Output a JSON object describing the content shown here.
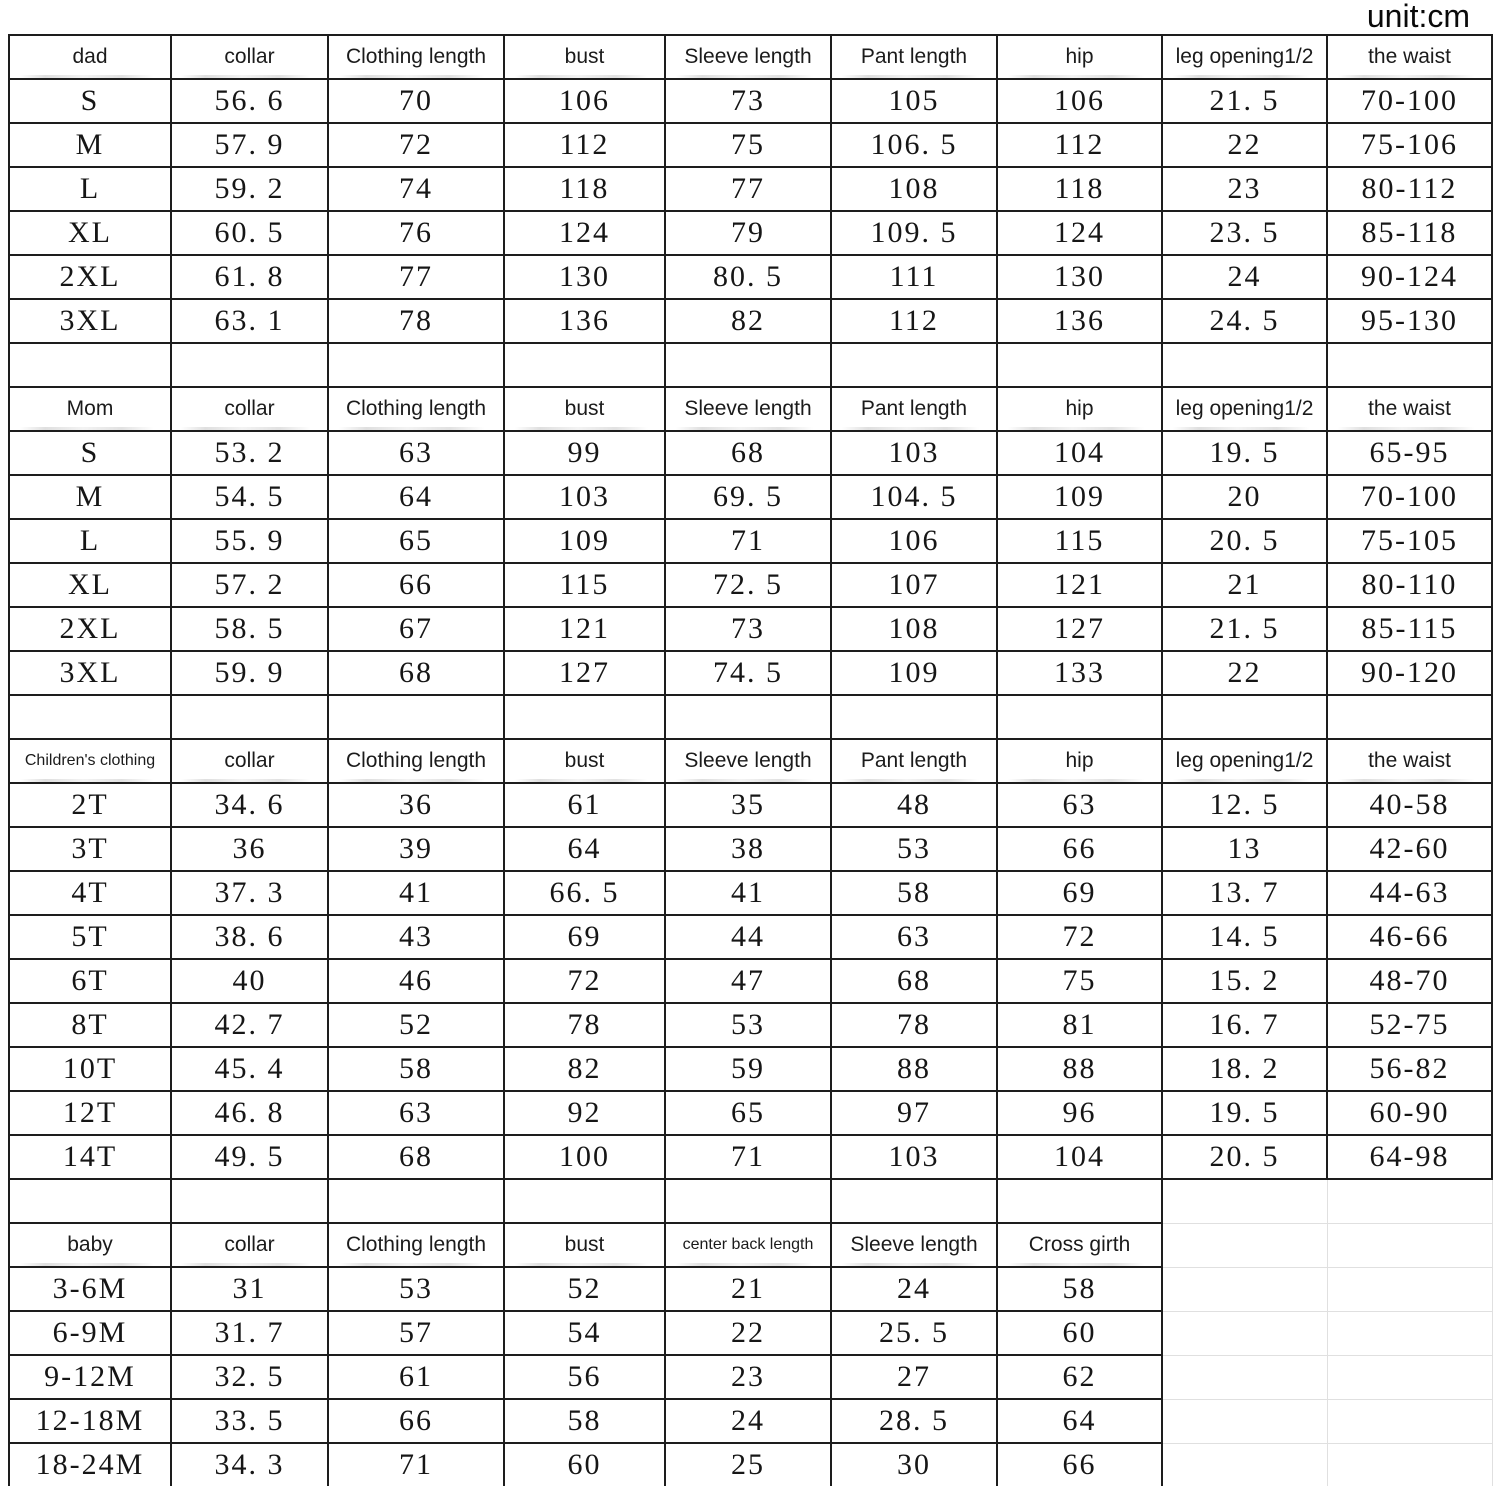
{
  "unit_label": "unit:cm",
  "chart_data": [
    {
      "type": "table",
      "name": "dad",
      "columns": [
        "dad",
        "collar",
        "Clothing length",
        "bust",
        "Sleeve length",
        "Pant length",
        "hip",
        "leg opening1/2",
        "the waist"
      ],
      "rows": [
        [
          "S",
          "56. 6",
          "70",
          "106",
          "73",
          "105",
          "106",
          "21. 5",
          "70-100"
        ],
        [
          "M",
          "57. 9",
          "72",
          "112",
          "75",
          "106. 5",
          "112",
          "22",
          "75-106"
        ],
        [
          "L",
          "59. 2",
          "74",
          "118",
          "77",
          "108",
          "118",
          "23",
          "80-112"
        ],
        [
          "XL",
          "60. 5",
          "76",
          "124",
          "79",
          "109. 5",
          "124",
          "23. 5",
          "85-118"
        ],
        [
          "2XL",
          "61. 8",
          "77",
          "130",
          "80. 5",
          "111",
          "130",
          "24",
          "90-124"
        ],
        [
          "3XL",
          "63. 1",
          "78",
          "136",
          "82",
          "112",
          "136",
          "24. 5",
          "95-130"
        ]
      ]
    },
    {
      "type": "table",
      "name": "Mom",
      "columns": [
        "Mom",
        "collar",
        "Clothing length",
        "bust",
        "Sleeve length",
        "Pant length",
        "hip",
        "leg opening1/2",
        "the waist"
      ],
      "rows": [
        [
          "S",
          "53. 2",
          "63",
          "99",
          "68",
          "103",
          "104",
          "19. 5",
          "65-95"
        ],
        [
          "M",
          "54. 5",
          "64",
          "103",
          "69. 5",
          "104. 5",
          "109",
          "20",
          "70-100"
        ],
        [
          "L",
          "55. 9",
          "65",
          "109",
          "71",
          "106",
          "115",
          "20. 5",
          "75-105"
        ],
        [
          "XL",
          "57. 2",
          "66",
          "115",
          "72. 5",
          "107",
          "121",
          "21",
          "80-110"
        ],
        [
          "2XL",
          "58. 5",
          "67",
          "121",
          "73",
          "108",
          "127",
          "21. 5",
          "85-115"
        ],
        [
          "3XL",
          "59. 9",
          "68",
          "127",
          "74. 5",
          "109",
          "133",
          "22",
          "90-120"
        ]
      ]
    },
    {
      "type": "table",
      "name": "Children's clothing",
      "columns": [
        "Children's clothing",
        "collar",
        "Clothing length",
        "bust",
        "Sleeve length",
        "Pant length",
        "hip",
        "leg opening1/2",
        "the waist"
      ],
      "rows": [
        [
          "2T",
          "34. 6",
          "36",
          "61",
          "35",
          "48",
          "63",
          "12. 5",
          "40-58"
        ],
        [
          "3T",
          "36",
          "39",
          "64",
          "38",
          "53",
          "66",
          "13",
          "42-60"
        ],
        [
          "4T",
          "37. 3",
          "41",
          "66. 5",
          "41",
          "58",
          "69",
          "13. 7",
          "44-63"
        ],
        [
          "5T",
          "38. 6",
          "43",
          "69",
          "44",
          "63",
          "72",
          "14. 5",
          "46-66"
        ],
        [
          "6T",
          "40",
          "46",
          "72",
          "47",
          "68",
          "75",
          "15. 2",
          "48-70"
        ],
        [
          "8T",
          "42. 7",
          "52",
          "78",
          "53",
          "78",
          "81",
          "16. 7",
          "52-75"
        ],
        [
          "10T",
          "45. 4",
          "58",
          "82",
          "59",
          "88",
          "88",
          "18. 2",
          "56-82"
        ],
        [
          "12T",
          "46. 8",
          "63",
          "92",
          "65",
          "97",
          "96",
          "19. 5",
          "60-90"
        ],
        [
          "14T",
          "49. 5",
          "68",
          "100",
          "71",
          "103",
          "104",
          "20. 5",
          "64-98"
        ]
      ]
    },
    {
      "type": "table",
      "name": "baby",
      "columns": [
        "baby",
        "collar",
        "Clothing length",
        "bust",
        "center back length",
        "Sleeve length",
        "Cross girth"
      ],
      "rows": [
        [
          "3-6M",
          "31",
          "53",
          "52",
          "21",
          "24",
          "58"
        ],
        [
          "6-9M",
          "31. 7",
          "57",
          "54",
          "22",
          "25. 5",
          "60"
        ],
        [
          "9-12M",
          "32. 5",
          "61",
          "56",
          "23",
          "27",
          "62"
        ],
        [
          "12-18M",
          "33. 5",
          "66",
          "58",
          "24",
          "28. 5",
          "64"
        ],
        [
          "18-24M",
          "34. 3",
          "71",
          "60",
          "25",
          "30",
          "66"
        ]
      ]
    }
  ]
}
